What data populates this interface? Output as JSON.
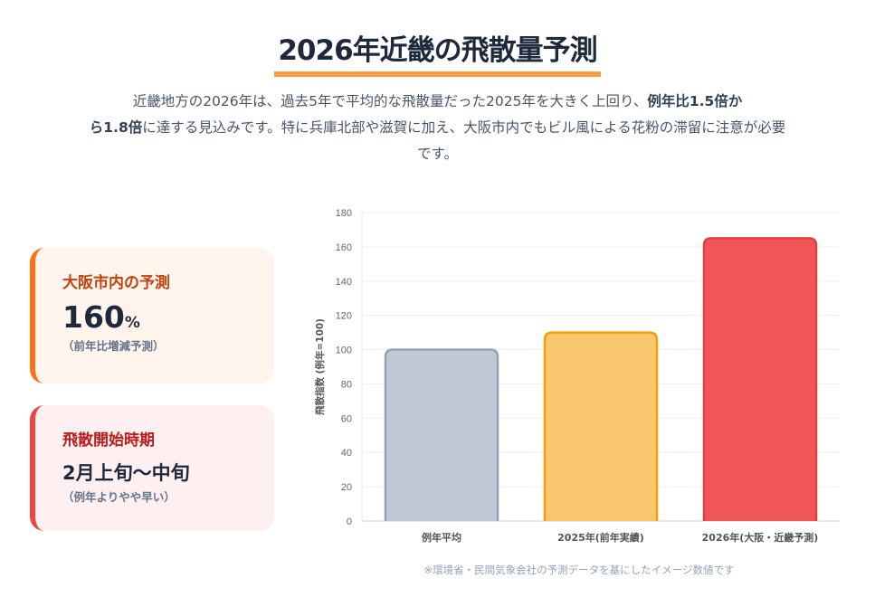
{
  "header": {
    "title": "2026年近畿の飛散量予測",
    "lead_1": "近畿地方の2026年は、過去5年で平均的な飛散量だった2025年を大きく上回り、",
    "lead_bold_1": "例年比1.5倍か",
    "lead_bold_2": "ら1.8倍",
    "lead_2": "に達する見込みです。特に兵庫北部や滋賀に加え、大阪市内でもビル風による花粉の滞留に注意が必要です。"
  },
  "cards": [
    {
      "title": "大阪市内の予測",
      "value": "160",
      "unit": "%",
      "note": "（前年比増減予測）"
    },
    {
      "title": "飛散開始時期",
      "value": "2月上旬〜中旬",
      "note": "（例年よりやや早い）"
    }
  ],
  "chart_data": {
    "type": "bar",
    "categories": [
      "例年平均",
      "2025年(前年実績)",
      "2026年(大阪・近畿予測)"
    ],
    "values": [
      100,
      110,
      165
    ],
    "ylabel": "飛散指数 (例年=100)",
    "ylim": [
      0,
      180
    ],
    "yticks": [
      "0",
      "20",
      "40",
      "60",
      "80",
      "100",
      "120",
      "140",
      "160",
      "180"
    ],
    "colors": {
      "fill": [
        "#c0c9d5",
        "#f8c66c",
        "#f05656"
      ],
      "stroke": [
        "#94a3b8",
        "#f59e0b",
        "#e53e3e"
      ]
    },
    "grid": true
  },
  "footnote": "※環境省・民間気象会社の予測データを基にしたイメージ数値です"
}
